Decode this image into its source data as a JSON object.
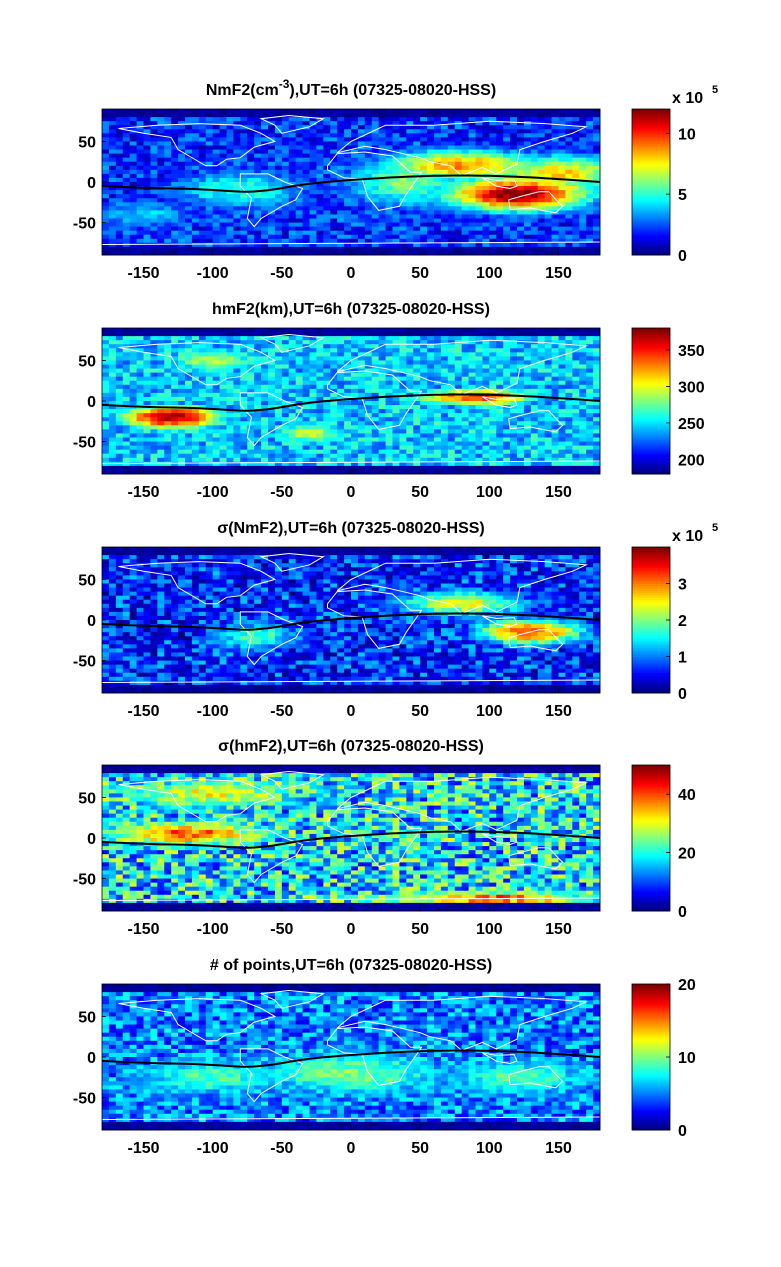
{
  "chart_data": [
    {
      "type": "heatmap",
      "title": "NmF2(cm",
      "title_superscript": "-3",
      "title_rest": "),UT=6h (07325-08020-HSS)",
      "xlim": [
        -180,
        180
      ],
      "ylim": [
        -90,
        90
      ],
      "x_ticks": [
        -150,
        -100,
        -50,
        0,
        50,
        100,
        150
      ],
      "y_ticks": [
        50,
        0,
        -50
      ],
      "colorbar": {
        "ticks": [
          0,
          5,
          10
        ],
        "range": [
          0,
          12
        ],
        "multiplier": "x 10",
        "multiplier_exp": "5"
      },
      "colormap": "jet",
      "blobs": [
        {
          "lon": 120,
          "lat": -15,
          "value": 12,
          "sigma_lon": 40,
          "sigma_lat": 16
        },
        {
          "lon": 80,
          "lat": 20,
          "value": 9,
          "sigma_lon": 45,
          "sigma_lat": 15
        },
        {
          "lon": 150,
          "lat": 10,
          "value": 8,
          "sigma_lon": 40,
          "sigma_lat": 18
        },
        {
          "lon": 40,
          "lat": 0,
          "value": 6,
          "sigma_lon": 35,
          "sigma_lat": 25
        },
        {
          "lon": -80,
          "lat": -10,
          "value": 5,
          "sigma_lon": 40,
          "sigma_lat": 20
        },
        {
          "lon": -150,
          "lat": -40,
          "value": 4,
          "sigma_lon": 30,
          "sigma_lat": 15
        }
      ],
      "base": 2,
      "noise": 1.5
    },
    {
      "type": "heatmap",
      "title": "hmF2(km),UT=6h (07325-08020-HSS)",
      "xlim": [
        -180,
        180
      ],
      "ylim": [
        -90,
        90
      ],
      "x_ticks": [
        -150,
        -100,
        -50,
        0,
        50,
        100,
        150
      ],
      "y_ticks": [
        50,
        0,
        -50
      ],
      "colorbar": {
        "ticks": [
          200,
          250,
          300,
          350
        ],
        "range": [
          180,
          380
        ]
      },
      "colormap": "jet",
      "blobs": [
        {
          "lon": -130,
          "lat": -20,
          "value": 370,
          "sigma_lon": 45,
          "sigma_lat": 18
        },
        {
          "lon": 90,
          "lat": 5,
          "value": 345,
          "sigma_lon": 55,
          "sigma_lat": 14
        },
        {
          "lon": -100,
          "lat": 50,
          "value": 290,
          "sigma_lon": 50,
          "sigma_lat": 20
        },
        {
          "lon": -30,
          "lat": -40,
          "value": 290,
          "sigma_lon": 40,
          "sigma_lat": 20
        }
      ],
      "base": 245,
      "noise": 25
    },
    {
      "type": "heatmap",
      "title": "σ(NmF2),UT=6h (07325-08020-HSS)",
      "xlim": [
        -180,
        180
      ],
      "ylim": [
        -90,
        90
      ],
      "x_ticks": [
        -150,
        -100,
        -50,
        0,
        50,
        100,
        150
      ],
      "y_ticks": [
        50,
        0,
        -50
      ],
      "colorbar": {
        "ticks": [
          0,
          1,
          2,
          3
        ],
        "range": [
          0,
          4
        ],
        "multiplier": "x 10",
        "multiplier_exp": "5"
      },
      "colormap": "jet",
      "blobs": [
        {
          "lon": 130,
          "lat": -15,
          "value": 3.2,
          "sigma_lon": 30,
          "sigma_lat": 12
        },
        {
          "lon": 80,
          "lat": 20,
          "value": 2.5,
          "sigma_lon": 35,
          "sigma_lat": 12
        },
        {
          "lon": -70,
          "lat": -20,
          "value": 1.8,
          "sigma_lon": 25,
          "sigma_lat": 14
        }
      ],
      "base": 0.6,
      "noise": 0.7
    },
    {
      "type": "heatmap",
      "title": "σ(hmF2),UT=6h (07325-08020-HSS)",
      "xlim": [
        -180,
        180
      ],
      "ylim": [
        -90,
        90
      ],
      "x_ticks": [
        -150,
        -100,
        -50,
        0,
        50,
        100,
        150
      ],
      "y_ticks": [
        50,
        0,
        -50
      ],
      "colorbar": {
        "ticks": [
          0,
          20,
          40
        ],
        "range": [
          0,
          50
        ]
      },
      "colormap": "jet",
      "blobs": [
        {
          "lon": -120,
          "lat": 5,
          "value": 40,
          "sigma_lon": 50,
          "sigma_lat": 12
        },
        {
          "lon": 100,
          "lat": -75,
          "value": 40,
          "sigma_lon": 60,
          "sigma_lat": 8
        },
        {
          "lon": -100,
          "lat": 55,
          "value": 30,
          "sigma_lon": 60,
          "sigma_lat": 15
        }
      ],
      "base": 18,
      "noise": 12
    },
    {
      "type": "heatmap",
      "title": "# of points,UT=6h (07325-08020-HSS)",
      "xlim": [
        -180,
        180
      ],
      "ylim": [
        -90,
        90
      ],
      "x_ticks": [
        -150,
        -100,
        -50,
        0,
        50,
        100,
        150
      ],
      "y_ticks": [
        50,
        0,
        -50
      ],
      "colorbar": {
        "ticks": [
          0,
          10,
          20
        ],
        "range": [
          0,
          20
        ]
      },
      "colormap": "jet",
      "blobs": [
        {
          "lon": 0,
          "lat": -20,
          "value": 10,
          "sigma_lon": 60,
          "sigma_lat": 25
        },
        {
          "lon": -100,
          "lat": -25,
          "value": 9,
          "sigma_lon": 50,
          "sigma_lat": 20
        },
        {
          "lon": 120,
          "lat": -25,
          "value": 9,
          "sigma_lon": 50,
          "sigma_lat": 20
        }
      ],
      "base": 5,
      "noise": 3
    }
  ]
}
